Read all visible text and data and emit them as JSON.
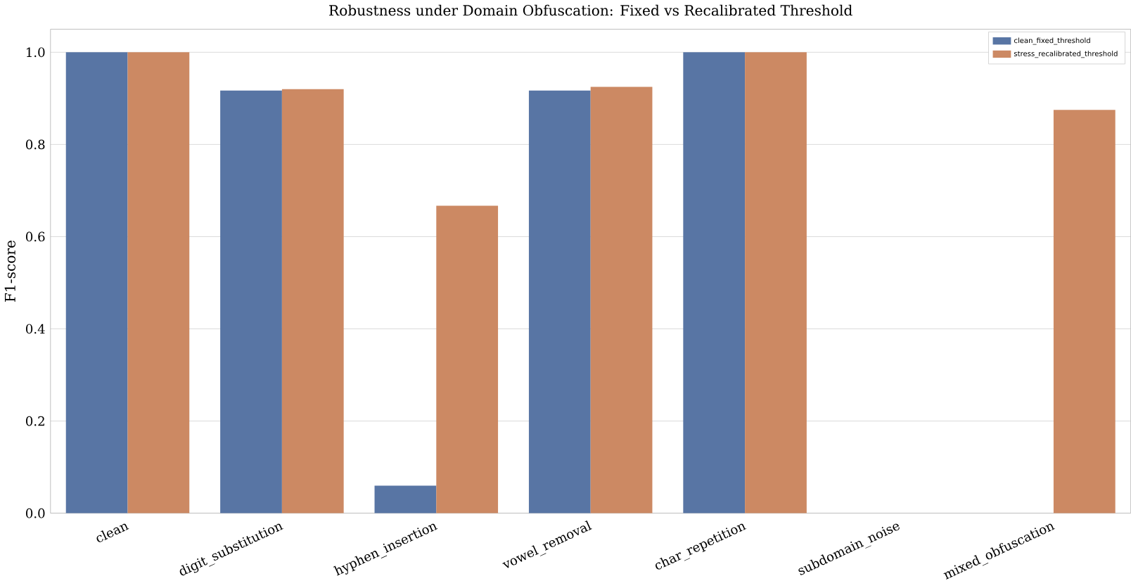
{
  "chart_data": {
    "type": "bar",
    "title": "Robustness under Domain Obfuscation: Fixed vs Recalibrated Threshold",
    "ylabel": "F1-score",
    "categories": [
      "clean",
      "digit_substitution",
      "hyphen_insertion",
      "vowel_removal",
      "char_repetition",
      "subdomain_noise",
      "mixed_obfuscation"
    ],
    "series": [
      {
        "name": "clean_fixed_threshold",
        "color": "#5875a4",
        "values": [
          1.0,
          0.917,
          0.06,
          0.917,
          1.0,
          0,
          0
        ]
      },
      {
        "name": "stress_recalibrated_threshold",
        "color": "#cc8963",
        "values": [
          1.0,
          0.92,
          0.667,
          0.925,
          1.0,
          0,
          0.875
        ]
      }
    ],
    "ylim": [
      0,
      1.05
    ],
    "yticks": [
      {
        "value": 0,
        "label": "0.0"
      },
      {
        "value": 0.2,
        "label": "0.2"
      },
      {
        "value": 0.4,
        "label": "0.4"
      },
      {
        "value": 0.6,
        "label": "0.6"
      },
      {
        "value": 0.8,
        "label": "0.8"
      },
      {
        "value": 1.0,
        "label": "1.0"
      }
    ],
    "grid": "y",
    "legend": "top right"
  }
}
